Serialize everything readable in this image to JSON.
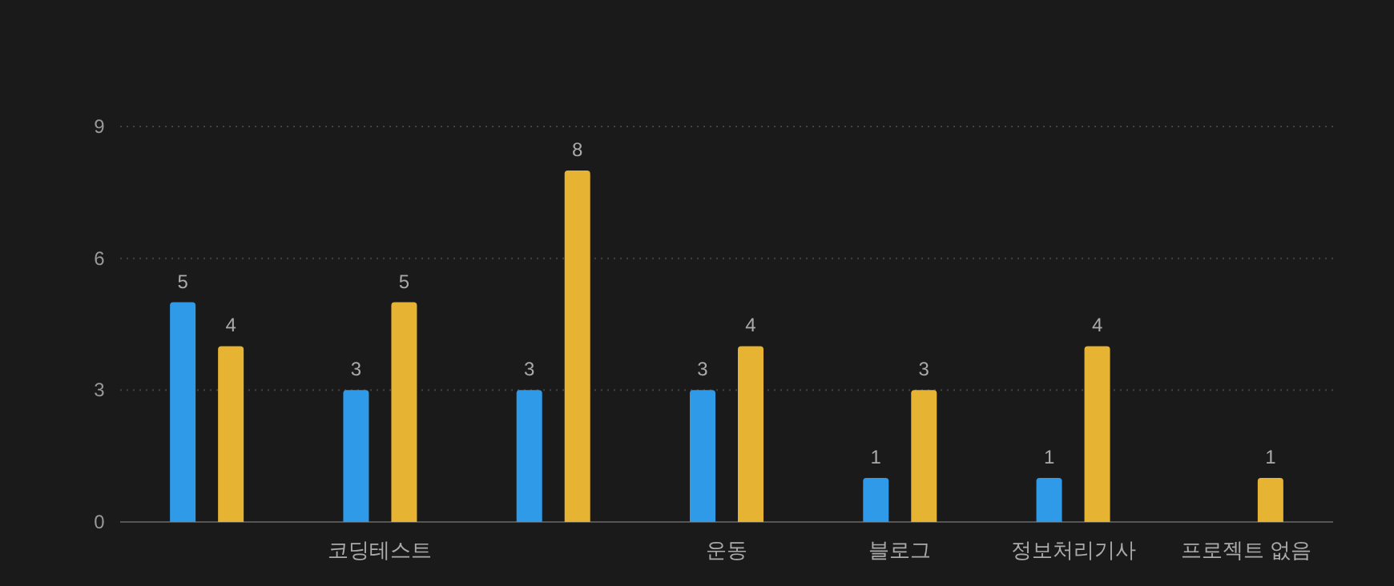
{
  "chart_data": {
    "type": "bar",
    "categories": [
      null,
      "코딩테스트",
      null,
      "운동",
      "블로그",
      "정보처리기사",
      "프로젝트 없음"
    ],
    "series": [
      {
        "color": "#2f9ae8",
        "values": [
          5,
          3,
          3,
          3,
          1,
          1,
          null
        ]
      },
      {
        "color": "#e6b432",
        "values": [
          4,
          5,
          8,
          4,
          3,
          4,
          1
        ]
      }
    ],
    "ylim": [
      0,
      9
    ],
    "yticks": [
      0,
      3,
      6,
      9
    ],
    "grid": "y",
    "data_labels": true
  }
}
